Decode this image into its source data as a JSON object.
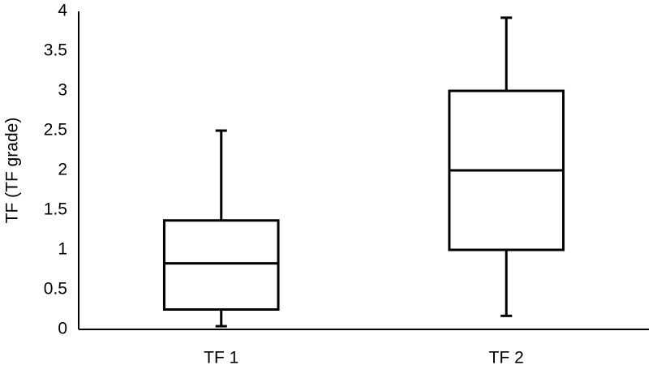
{
  "chart_data": {
    "type": "box",
    "y_label": "TF (TF grade)",
    "categories": [
      "TF 1",
      "TF 2"
    ],
    "boxes": [
      {
        "min": 0.04,
        "q1": 0.25,
        "median": 0.83,
        "q3": 1.37,
        "max": 2.5
      },
      {
        "min": 0.17,
        "q1": 1,
        "median": 2,
        "q3": 3,
        "max": 3.92
      }
    ],
    "color": "#000000",
    "ylim": [
      0,
      4
    ],
    "yticks": [
      0,
      0.5,
      1,
      1.5,
      2,
      2.5,
      3,
      3.5,
      4
    ],
    "grid": false
  }
}
